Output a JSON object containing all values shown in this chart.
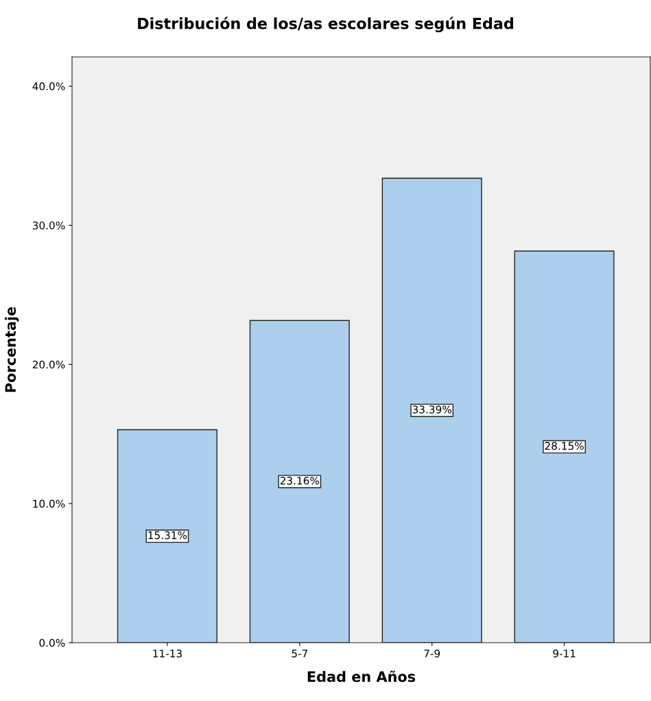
{
  "chart_data": {
    "type": "bar",
    "title": "Distribución de los/as escolares según Edad",
    "xlabel": "Edad en Años",
    "ylabel": "Porcentaje",
    "categories": [
      "11-13",
      "5-7",
      "7-9",
      "9-11"
    ],
    "values": [
      15.31,
      23.16,
      33.39,
      28.15
    ],
    "value_labels": [
      "15.31%",
      "23.16%",
      "33.39%",
      "28.15%"
    ],
    "color": "#abcfed",
    "ylim": [
      0,
      42.1
    ],
    "yticks": [
      {
        "value": 0,
        "label": "0.0%"
      },
      {
        "value": 10,
        "label": "10.0%"
      },
      {
        "value": 20,
        "label": "20.0%"
      },
      {
        "value": 30,
        "label": "30.0%"
      },
      {
        "value": 40,
        "label": "40.0%"
      }
    ],
    "grid": false
  }
}
